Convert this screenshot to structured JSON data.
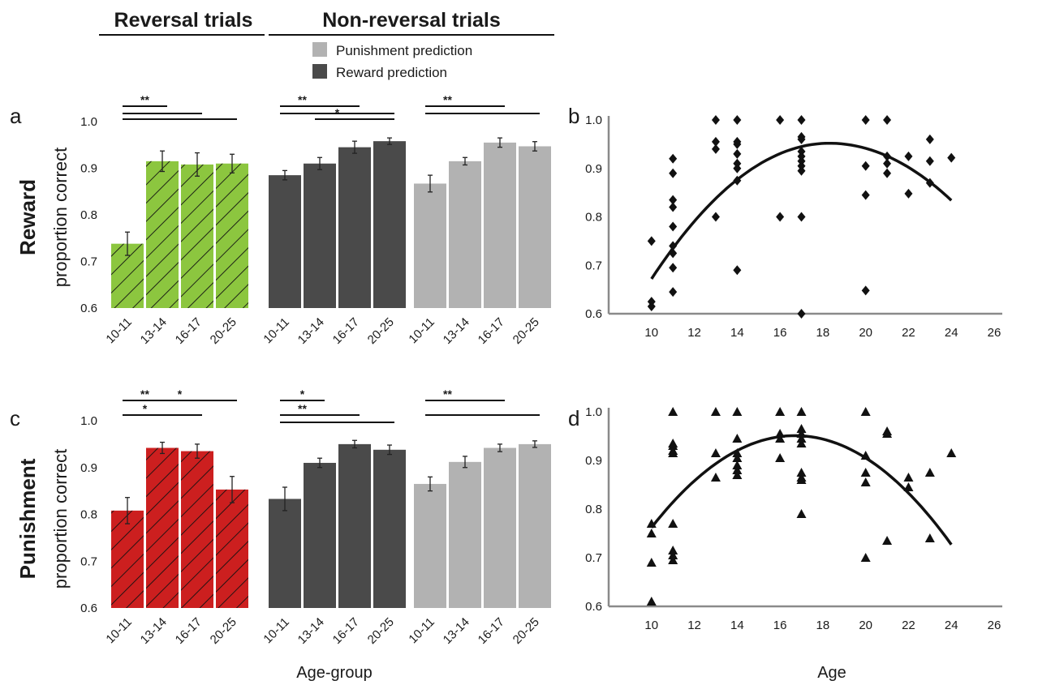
{
  "headers": {
    "reversal": "Reversal trials",
    "nonreversal": "Non-reversal trials"
  },
  "legend": [
    {
      "label": "Punishment prediction",
      "color": "#b2b2b2"
    },
    {
      "label": "Reward prediction",
      "color": "#4a4a4a"
    }
  ],
  "panels": {
    "a": "a",
    "b": "b",
    "c": "c",
    "d": "d"
  },
  "row_labels": {
    "reward": "Reward",
    "punishment": "Punishment"
  },
  "colors": {
    "reward_reversal": "#8cc63f",
    "punishment_reversal": "#cc1f1f",
    "reward_prediction": "#4a4a4a",
    "punishment_prediction": "#b2b2b2"
  },
  "chart_data": [
    {
      "type": "bar",
      "panel": "a",
      "ylabel": "proportion correct",
      "xlabel": "",
      "ylim": [
        0.6,
        1.0
      ],
      "yticks": [
        "0.6",
        "0.7",
        "0.8",
        "0.9",
        "1.0"
      ],
      "groups": [
        {
          "categories": [
            "10-11",
            "13-14",
            "16-17",
            "20-25"
          ],
          "values": [
            0.738,
            0.915,
            0.908,
            0.91
          ],
          "errors": [
            0.025,
            0.022,
            0.025,
            0.02
          ],
          "color_key": "reward_reversal",
          "hatched": true
        },
        {
          "categories": [
            "10-11",
            "13-14",
            "16-17",
            "20-25"
          ],
          "values": [
            0.885,
            0.91,
            0.945,
            0.958
          ],
          "errors": [
            0.01,
            0.013,
            0.013,
            0.007
          ],
          "color_key": "reward_prediction",
          "hatched": false
        },
        {
          "categories": [
            "10-11",
            "13-14",
            "16-17",
            "20-25"
          ],
          "values": [
            0.867,
            0.915,
            0.955,
            0.947
          ],
          "errors": [
            0.018,
            0.008,
            0.01,
            0.01
          ],
          "color_key": "punishment_prediction",
          "hatched": false
        }
      ],
      "significance": [
        {
          "group": 0,
          "from": 0,
          "to": 1,
          "label": "**",
          "level": 0
        },
        {
          "group": 0,
          "from": 0,
          "to": 2,
          "label": "",
          "level": 1
        },
        {
          "group": 0,
          "from": 0,
          "to": 3,
          "label": "",
          "level": 2
        },
        {
          "group": 1,
          "from": 0,
          "to": 2,
          "label": "**",
          "level": 0
        },
        {
          "group": 1,
          "from": 0,
          "to": 3,
          "label": "",
          "level": 1
        },
        {
          "group": 1,
          "from": 1,
          "to": 3,
          "label": "*",
          "level": 2
        },
        {
          "group": 2,
          "from": 0,
          "to": 2,
          "label": "**",
          "level": 0
        },
        {
          "group": 2,
          "from": 0,
          "to": 3,
          "label": "",
          "level": 1
        }
      ]
    },
    {
      "type": "scatter",
      "panel": "b",
      "marker": "diamond",
      "xlabel": "",
      "ylabel": "",
      "xlim": [
        8,
        26
      ],
      "ylim": [
        0.6,
        1.0
      ],
      "xticks": [
        "10",
        "12",
        "14",
        "16",
        "18",
        "20",
        "22",
        "24",
        "26"
      ],
      "yticks": [
        "0.6",
        "0.7",
        "0.8",
        "0.9",
        "1.0"
      ],
      "points": [
        [
          10,
          0.75
        ],
        [
          10,
          0.625
        ],
        [
          10,
          0.615
        ],
        [
          11,
          0.92
        ],
        [
          11,
          0.89
        ],
        [
          11,
          0.835
        ],
        [
          11,
          0.82
        ],
        [
          11,
          0.78
        ],
        [
          11,
          0.74
        ],
        [
          11,
          0.725
        ],
        [
          11,
          0.695
        ],
        [
          11,
          0.645
        ],
        [
          13,
          1.0
        ],
        [
          13,
          0.955
        ],
        [
          13,
          0.94
        ],
        [
          13,
          0.8
        ],
        [
          14,
          1.0
        ],
        [
          14,
          0.955
        ],
        [
          14,
          0.95
        ],
        [
          14,
          0.93
        ],
        [
          14,
          0.91
        ],
        [
          14,
          0.9
        ],
        [
          14,
          0.875
        ],
        [
          14,
          0.69
        ],
        [
          16,
          1.0
        ],
        [
          16,
          0.8
        ],
        [
          17,
          1.0
        ],
        [
          17,
          0.965
        ],
        [
          17,
          0.96
        ],
        [
          17,
          0.935
        ],
        [
          17,
          0.925
        ],
        [
          17,
          0.915
        ],
        [
          17,
          0.905
        ],
        [
          17,
          0.895
        ],
        [
          17,
          0.8
        ],
        [
          17,
          0.6
        ],
        [
          20,
          1.0
        ],
        [
          20,
          0.905
        ],
        [
          20,
          0.845
        ],
        [
          20,
          0.648
        ],
        [
          21,
          1.0
        ],
        [
          21,
          0.925
        ],
        [
          21,
          0.91
        ],
        [
          21,
          0.89
        ],
        [
          22,
          0.925
        ],
        [
          22,
          0.848
        ],
        [
          23,
          0.96
        ],
        [
          23,
          0.915
        ],
        [
          23,
          0.87
        ],
        [
          24,
          0.922
        ]
      ],
      "fit": {
        "type": "quadratic",
        "peak_x": 18.3,
        "peak_y": 0.952,
        "x_range": [
          10,
          24
        ],
        "y_at_start": 0.672,
        "y_at_end": 0.834
      }
    },
    {
      "type": "bar",
      "panel": "c",
      "ylabel": "proportion correct",
      "xlabel": "Age-group",
      "ylim": [
        0.6,
        1.0
      ],
      "yticks": [
        "0.6",
        "0.7",
        "0.8",
        "0.9",
        "1.0"
      ],
      "groups": [
        {
          "categories": [
            "10-11",
            "13-14",
            "16-17",
            "20-25"
          ],
          "values": [
            0.808,
            0.942,
            0.935,
            0.853
          ],
          "errors": [
            0.028,
            0.012,
            0.015,
            0.028
          ],
          "color_key": "punishment_reversal",
          "hatched": true
        },
        {
          "categories": [
            "10-11",
            "13-14",
            "16-17",
            "20-25"
          ],
          "values": [
            0.833,
            0.91,
            0.95,
            0.938
          ],
          "errors": [
            0.025,
            0.01,
            0.008,
            0.01
          ],
          "color_key": "reward_prediction",
          "hatched": false
        },
        {
          "categories": [
            "10-11",
            "13-14",
            "16-17",
            "20-25"
          ],
          "values": [
            0.865,
            0.912,
            0.942,
            0.95
          ],
          "errors": [
            0.015,
            0.012,
            0.008,
            0.007
          ],
          "color_key": "punishment_prediction",
          "hatched": false
        }
      ],
      "significance": [
        {
          "group": 0,
          "from": 0,
          "to": 1,
          "label": "**",
          "level": 0
        },
        {
          "group": 0,
          "from": 1,
          "to": 3,
          "label": "*",
          "level": 0
        },
        {
          "group": 0,
          "from": 0,
          "to": 2,
          "label": "*",
          "level": 1
        },
        {
          "group": 1,
          "from": 0,
          "to": 1,
          "label": "*",
          "level": 0
        },
        {
          "group": 1,
          "from": 0,
          "to": 2,
          "label": "**",
          "level": 1
        },
        {
          "group": 1,
          "from": 0,
          "to": 3,
          "label": "",
          "level": 2
        },
        {
          "group": 2,
          "from": 0,
          "to": 2,
          "label": "**",
          "level": 0
        },
        {
          "group": 2,
          "from": 0,
          "to": 3,
          "label": "",
          "level": 1
        }
      ]
    },
    {
      "type": "scatter",
      "panel": "d",
      "marker": "triangle",
      "xlabel": "Age",
      "ylabel": "",
      "xlim": [
        8,
        26
      ],
      "ylim": [
        0.6,
        1.0
      ],
      "xticks": [
        "10",
        "12",
        "14",
        "16",
        "18",
        "20",
        "22",
        "24",
        "26"
      ],
      "yticks": [
        "0.6",
        "0.7",
        "0.8",
        "0.9",
        "1.0"
      ],
      "points": [
        [
          10,
          0.77
        ],
        [
          10,
          0.75
        ],
        [
          10,
          0.69
        ],
        [
          10,
          0.61
        ],
        [
          11,
          1.0
        ],
        [
          11,
          0.935
        ],
        [
          11,
          0.93
        ],
        [
          11,
          0.92
        ],
        [
          11,
          0.915
        ],
        [
          11,
          0.77
        ],
        [
          11,
          0.715
        ],
        [
          11,
          0.705
        ],
        [
          11,
          0.695
        ],
        [
          13,
          1.0
        ],
        [
          13,
          0.915
        ],
        [
          13,
          0.865
        ],
        [
          14,
          1.0
        ],
        [
          14,
          0.945
        ],
        [
          14,
          0.915
        ],
        [
          14,
          0.905
        ],
        [
          14,
          0.89
        ],
        [
          14,
          0.88
        ],
        [
          14,
          0.87
        ],
        [
          16,
          1.0
        ],
        [
          16,
          0.955
        ],
        [
          16,
          0.945
        ],
        [
          16,
          0.905
        ],
        [
          17,
          1.0
        ],
        [
          17,
          0.965
        ],
        [
          17,
          0.955
        ],
        [
          17,
          0.945
        ],
        [
          17,
          0.935
        ],
        [
          17,
          0.875
        ],
        [
          17,
          0.865
        ],
        [
          17,
          0.86
        ],
        [
          17,
          0.79
        ],
        [
          20,
          1.0
        ],
        [
          20,
          0.91
        ],
        [
          20,
          0.875
        ],
        [
          20,
          0.855
        ],
        [
          20,
          0.7
        ],
        [
          21,
          0.96
        ],
        [
          21,
          0.955
        ],
        [
          21,
          0.735
        ],
        [
          22,
          0.865
        ],
        [
          22,
          0.845
        ],
        [
          23,
          0.875
        ],
        [
          23,
          0.74
        ],
        [
          24,
          0.915
        ]
      ],
      "fit": {
        "type": "quadratic",
        "peak_x": 16.7,
        "peak_y": 0.951,
        "x_range": [
          10,
          24
        ],
        "y_at_start": 0.762,
        "y_at_end": 0.727
      }
    }
  ]
}
